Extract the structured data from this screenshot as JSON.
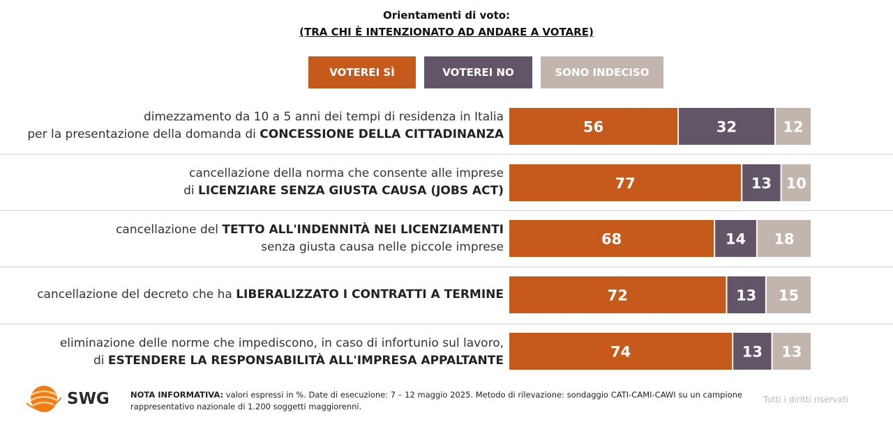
{
  "header": {
    "title": "Orientamenti di voto:",
    "subtitle": "(TRA CHI È INTENZIONATO AD ANDARE A VOTARE)"
  },
  "legend": [
    {
      "label": "VOTEREI SÌ",
      "color": "#c65a1b"
    },
    {
      "label": "VOTEREI NO",
      "color": "#625567"
    },
    {
      "label": "SONO INDECISO",
      "color": "#c1b5ad"
    }
  ],
  "rows": [
    {
      "lines": [
        [
          {
            "t": "dimezzamento da 10 a 5 anni dei tempi di residenza in Italia",
            "b": false
          }
        ],
        [
          {
            "t": "per la presentazione della domanda di ",
            "b": false
          },
          {
            "t": "CONCESSIONE DELLA CITTADINANZA",
            "b": true
          }
        ]
      ]
    },
    {
      "lines": [
        [
          {
            "t": "cancellazione della norma che consente alle imprese",
            "b": false
          }
        ],
        [
          {
            "t": "di ",
            "b": false
          },
          {
            "t": "LICENZIARE SENZA GIUSTA CAUSA (JOBS ACT)",
            "b": true
          }
        ]
      ]
    },
    {
      "lines": [
        [
          {
            "t": "cancellazione del ",
            "b": false
          },
          {
            "t": "TETTO ALL'INDENNITÀ NEI LICENZIAMENTI",
            "b": true
          }
        ],
        [
          {
            "t": "senza giusta causa nelle piccole imprese",
            "b": false
          }
        ]
      ]
    },
    {
      "lines": [
        [
          {
            "t": "cancellazione del decreto che ha ",
            "b": false
          },
          {
            "t": "LIBERALIZZATO I CONTRATTI A TERMINE",
            "b": true
          }
        ]
      ]
    },
    {
      "lines": [
        [
          {
            "t": "eliminazione delle norme che impediscono, in caso di infortunio sul lavoro,",
            "b": false
          }
        ],
        [
          {
            "t": "di ",
            "b": false
          },
          {
            "t": "ESTENDERE LA RESPONSABILITÀ ALL'IMPRESA APPALTANTE",
            "b": true
          }
        ]
      ]
    }
  ],
  "chart_data": {
    "type": "bar",
    "orientation": "horizontal",
    "stacked": true,
    "unit": "%",
    "xlim": [
      0,
      100
    ],
    "categories": [
      "dimezzamento da 10 a 5 anni dei tempi di residenza in Italia per la presentazione della domanda di CONCESSIONE DELLA CITTADINANZA",
      "cancellazione della norma che consente alle imprese di LICENZIARE SENZA GIUSTA CAUSA (JOBS ACT)",
      "cancellazione del TETTO ALL'INDENNITÀ NEI LICENZIAMENTI senza giusta causa nelle piccole imprese",
      "cancellazione del decreto che ha LIBERALIZZATO I CONTRATTI A TERMINE",
      "eliminazione delle norme che impediscono, in caso di infortunio sul lavoro, di ESTENDERE LA RESPONSABILITÀ ALL'IMPRESA APPALTANTE"
    ],
    "series": [
      {
        "name": "VOTEREI SÌ",
        "color": "#c65a1b",
        "values": [
          56,
          77,
          68,
          72,
          74
        ]
      },
      {
        "name": "VOTEREI NO",
        "color": "#625567",
        "values": [
          32,
          13,
          14,
          13,
          13
        ]
      },
      {
        "name": "SONO INDECISO",
        "color": "#c1b5ad",
        "values": [
          12,
          10,
          18,
          15,
          13
        ]
      }
    ],
    "title": "Orientamenti di voto:",
    "subtitle": "(TRA CHI È INTENZIONATO AD ANDARE A VOTARE)",
    "legend": "top-center",
    "grid": false
  },
  "footer": {
    "logo": "SWG",
    "note_bold": "NOTA INFORMATIVA:",
    "note_text": " valori espressi in %. Date di esecuzione: 7 – 12 maggio 2025. Metodo di rilevazione: sondaggio CATI-CAMI-CAWI su un campione rappresentativo nazionale di 1.200 soggetti maggiorenni.",
    "rights": "Tutti i diritti riservati"
  }
}
